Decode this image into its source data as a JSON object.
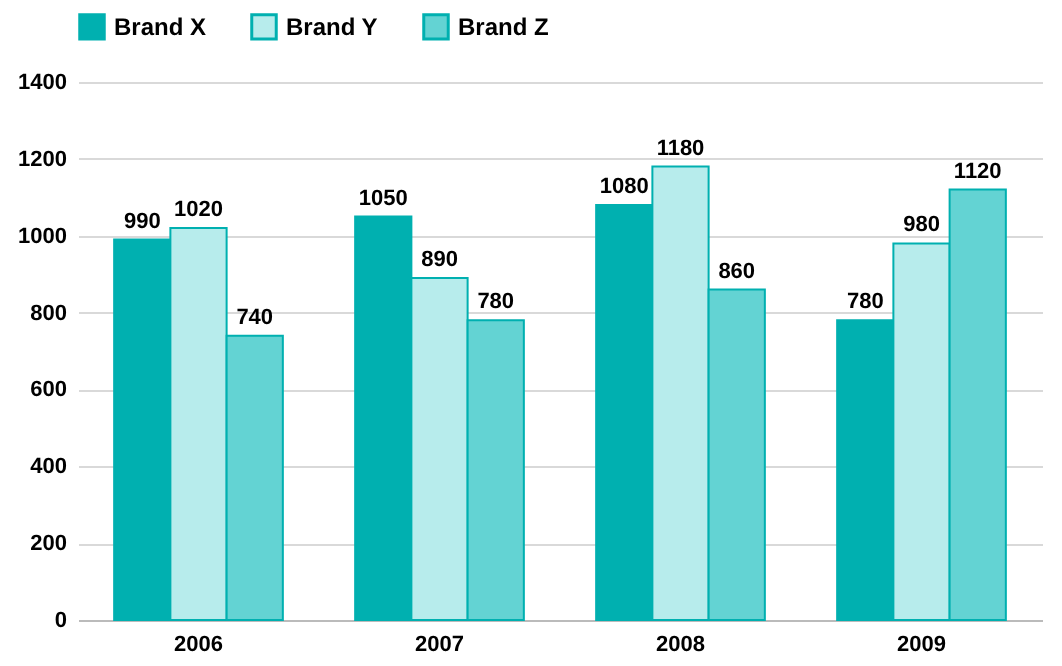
{
  "chart_data": {
    "type": "bar",
    "categories": [
      "2006",
      "2007",
      "2008",
      "2009"
    ],
    "series": [
      {
        "name": "Brand X",
        "color": "#00b0b0",
        "values": [
          990,
          1050,
          1080,
          780
        ]
      },
      {
        "name": "Brand Y",
        "color": "#b7ecec",
        "values": [
          1020,
          890,
          1180,
          980
        ]
      },
      {
        "name": "Brand Z",
        "color": "#63d3d3",
        "values": [
          740,
          780,
          860,
          1120
        ]
      }
    ],
    "ylim": [
      0,
      1400
    ],
    "yticks": [
      0,
      200,
      400,
      600,
      800,
      1000,
      1200,
      1400
    ],
    "grid": "y",
    "legend": "top",
    "data_labels": true
  }
}
